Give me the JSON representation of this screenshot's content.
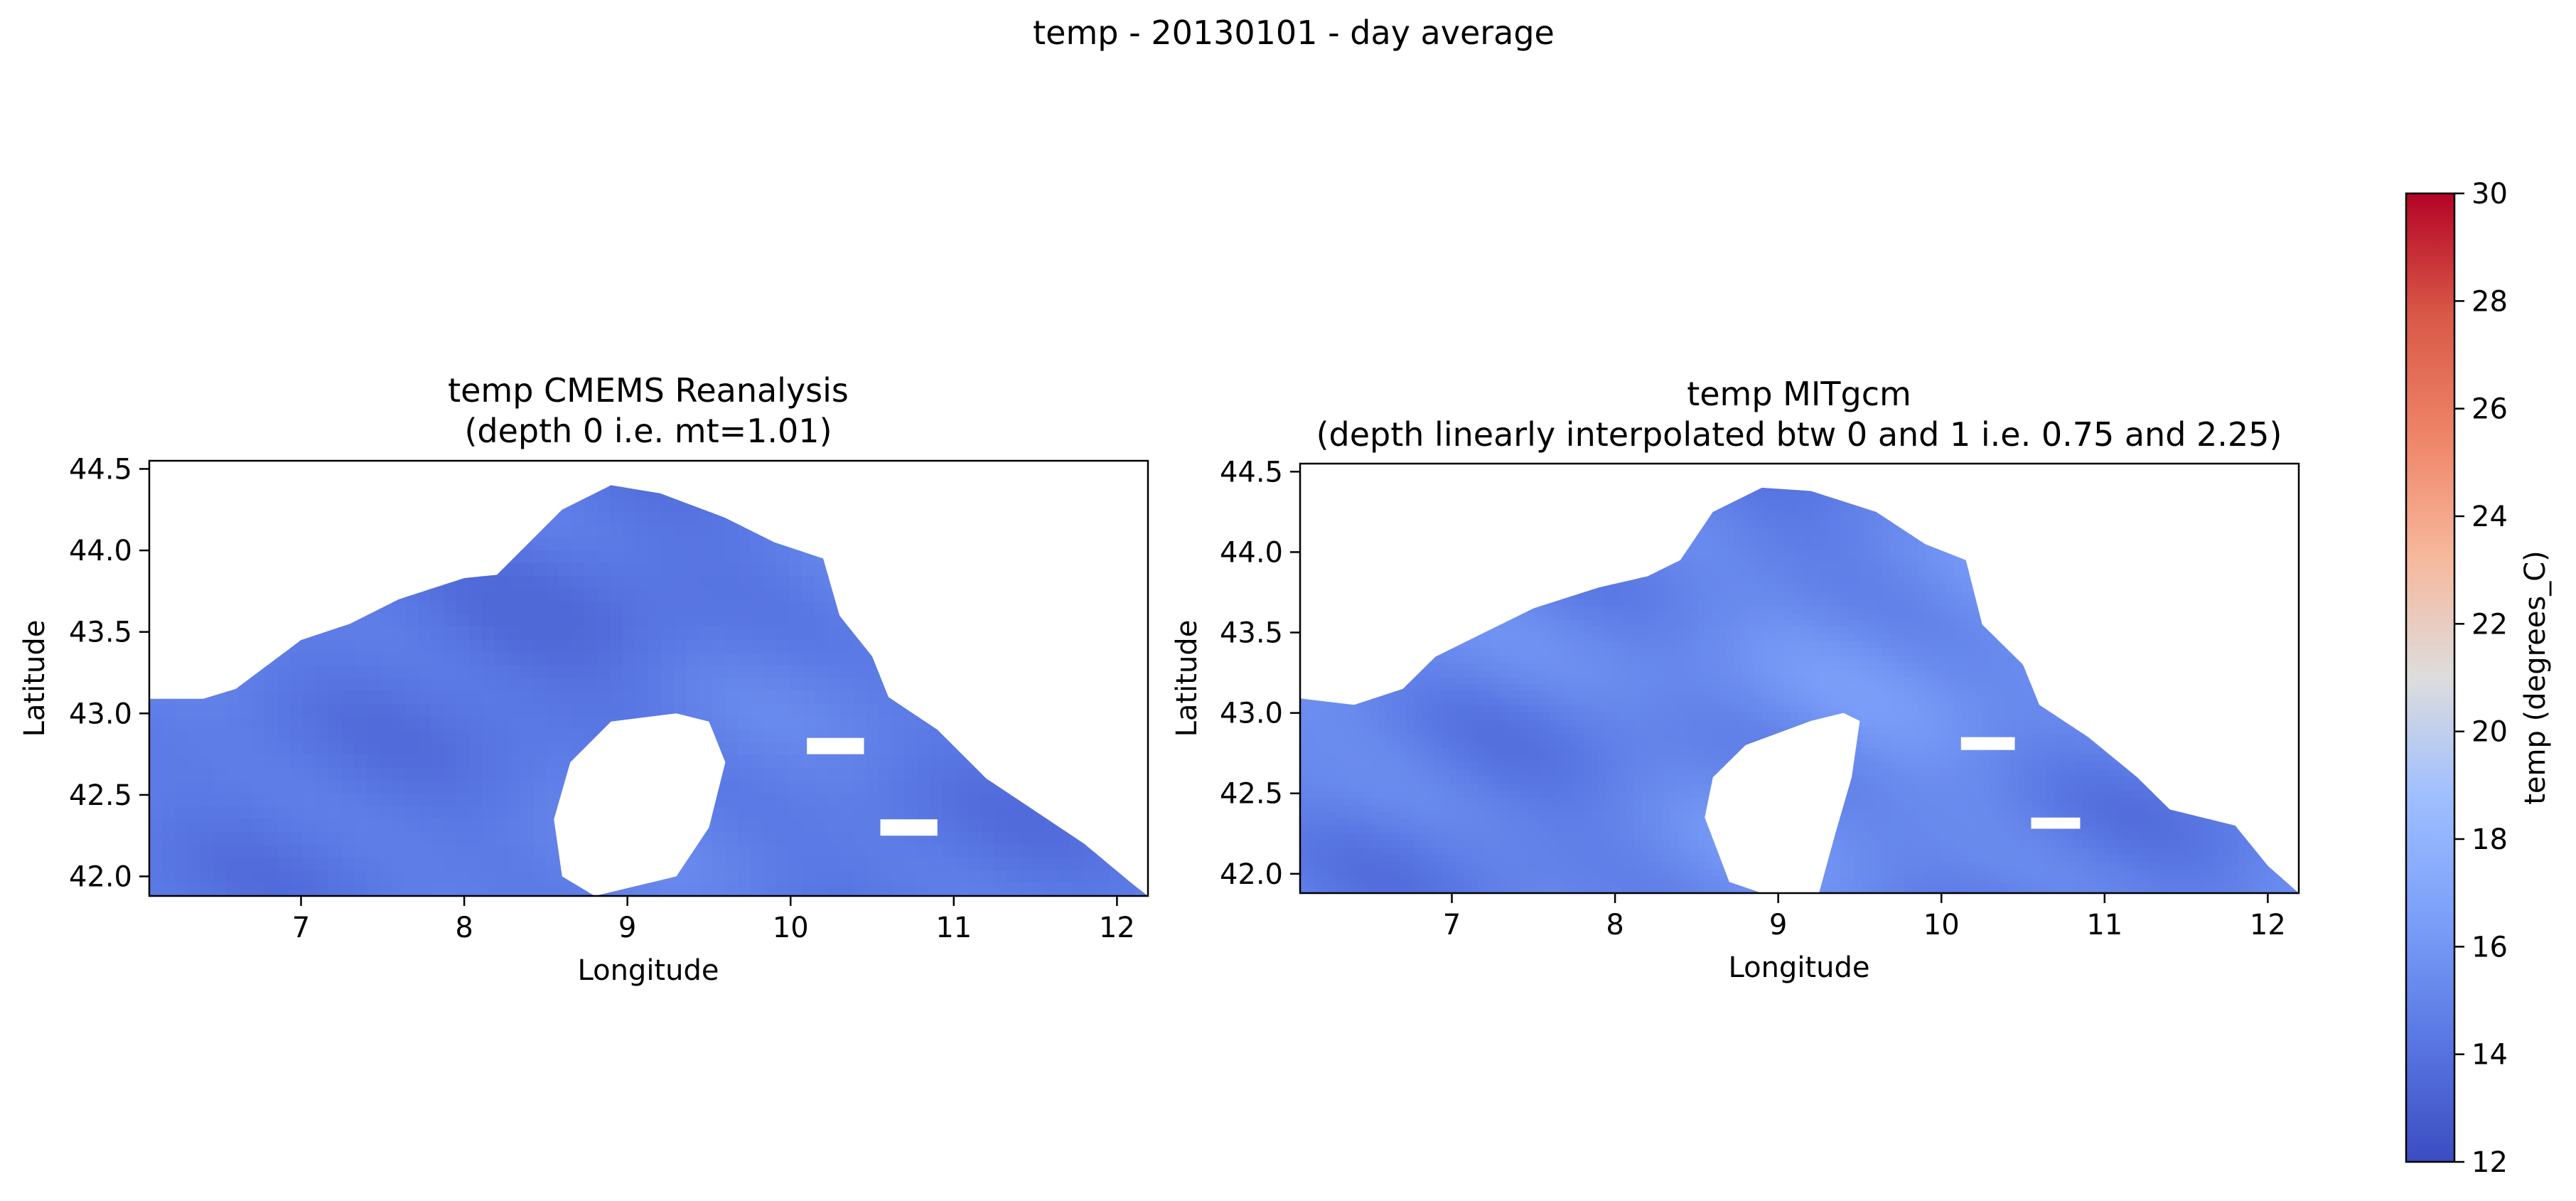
{
  "figure": {
    "suptitle": "temp - 20130101 - day average"
  },
  "colorbar": {
    "label": "temp (degrees_C)",
    "vmin": 12,
    "vmax": 30,
    "ticks": [
      12,
      14,
      16,
      18,
      20,
      22,
      24,
      26,
      28,
      30
    ],
    "colormap": "coolwarm",
    "colormap_low": "#3b4cc0",
    "colormap_mid": "#dddddd",
    "colormap_high": "#b40426"
  },
  "chart_data": [
    {
      "type": "heatmap",
      "title_line1": "temp CMEMS Reanalysis",
      "title_line2": "(depth 0 i.e. mt=1.01)",
      "xlabel": "Longitude",
      "ylabel": "Latitude",
      "xlim": [
        6.07,
        12.19
      ],
      "ylim": [
        41.88,
        44.55
      ],
      "xticks": [
        7,
        8,
        9,
        10,
        11,
        12
      ],
      "yticks": [
        42.0,
        42.5,
        43.0,
        43.5,
        44.0,
        44.5
      ],
      "ytick_labels": [
        "42.0",
        "42.5",
        "43.0",
        "43.5",
        "44.0",
        "44.5"
      ],
      "value_range": [
        13.5,
        15.5
      ],
      "typical_value": 14.3,
      "grid": false,
      "land_color": "#ffffff",
      "coast": [
        [
          6.07,
          43.09
        ],
        [
          6.4,
          43.09
        ],
        [
          6.6,
          43.15
        ],
        [
          6.8,
          43.3
        ],
        [
          7.0,
          43.45
        ],
        [
          7.3,
          43.55
        ],
        [
          7.6,
          43.7
        ],
        [
          8.0,
          43.83
        ],
        [
          8.2,
          43.85
        ],
        [
          8.45,
          44.1
        ],
        [
          8.6,
          44.25
        ],
        [
          8.9,
          44.4
        ],
        [
          9.2,
          44.35
        ],
        [
          9.6,
          44.2
        ],
        [
          9.9,
          44.05
        ],
        [
          10.2,
          43.95
        ],
        [
          10.3,
          43.6
        ],
        [
          10.5,
          43.35
        ],
        [
          10.6,
          43.1
        ],
        [
          10.9,
          42.9
        ],
        [
          11.2,
          42.6
        ],
        [
          11.5,
          42.4
        ],
        [
          11.8,
          42.2
        ],
        [
          12.1,
          41.95
        ],
        [
          12.19,
          41.88
        ],
        [
          6.07,
          41.88
        ]
      ],
      "islands": [
        {
          "name": "",
          "poly": [
            [
              8.55,
              42.35
            ],
            [
              8.65,
              42.7
            ],
            [
              8.9,
              42.95
            ],
            [
              9.3,
              43.0
            ],
            [
              9.5,
              42.95
            ],
            [
              9.6,
              42.7
            ],
            [
              9.5,
              42.3
            ],
            [
              9.3,
              42.0
            ],
            [
              8.8,
              41.88
            ],
            [
              8.6,
              42.0
            ]
          ]
        },
        {
          "name": "",
          "poly": [
            [
              10.1,
              42.85
            ],
            [
              10.45,
              42.85
            ],
            [
              10.45,
              42.75
            ],
            [
              10.1,
              42.75
            ]
          ]
        },
        {
          "name": "",
          "poly": [
            [
              10.55,
              42.35
            ],
            [
              10.9,
              42.35
            ],
            [
              10.9,
              42.25
            ],
            [
              10.55,
              42.25
            ]
          ]
        }
      ]
    },
    {
      "type": "heatmap",
      "title_line1": "temp MITgcm",
      "title_line2": "(depth linearly interpolated btw 0 and 1 i.e. 0.75 and 2.25)",
      "xlabel": "Longitude",
      "ylabel": "Latitude",
      "xlim": [
        6.07,
        12.19
      ],
      "ylim": [
        41.88,
        44.55
      ],
      "xticks": [
        7,
        8,
        9,
        10,
        11,
        12
      ],
      "yticks": [
        42.0,
        42.5,
        43.0,
        43.5,
        44.0,
        44.5
      ],
      "ytick_labels": [
        "42.0",
        "42.5",
        "43.0",
        "43.5",
        "44.0",
        "44.5"
      ],
      "value_range": [
        13.5,
        16.5
      ],
      "typical_value": 14.8,
      "grid": false,
      "land_color": "#ffffff",
      "coast": [
        [
          6.07,
          43.09
        ],
        [
          6.4,
          43.05
        ],
        [
          6.7,
          43.15
        ],
        [
          6.9,
          43.35
        ],
        [
          7.2,
          43.5
        ],
        [
          7.5,
          43.65
        ],
        [
          7.9,
          43.78
        ],
        [
          8.2,
          43.85
        ],
        [
          8.4,
          43.95
        ],
        [
          8.6,
          44.25
        ],
        [
          8.9,
          44.4
        ],
        [
          9.2,
          44.38
        ],
        [
          9.6,
          44.25
        ],
        [
          9.9,
          44.05
        ],
        [
          10.15,
          43.95
        ],
        [
          10.25,
          43.55
        ],
        [
          10.5,
          43.3
        ],
        [
          10.6,
          43.05
        ],
        [
          10.9,
          42.85
        ],
        [
          11.2,
          42.6
        ],
        [
          11.4,
          42.4
        ],
        [
          11.8,
          42.3
        ],
        [
          12.0,
          42.05
        ],
        [
          12.19,
          41.88
        ],
        [
          6.07,
          41.88
        ]
      ],
      "islands": [
        {
          "name": "",
          "poly": [
            [
              8.55,
              42.35
            ],
            [
              8.6,
              42.6
            ],
            [
              8.8,
              42.8
            ],
            [
              9.2,
              42.95
            ],
            [
              9.4,
              43.0
            ],
            [
              9.5,
              42.95
            ],
            [
              9.45,
              42.6
            ],
            [
              9.35,
              42.25
            ],
            [
              9.25,
              41.88
            ],
            [
              8.9,
              41.88
            ],
            [
              8.7,
              41.95
            ]
          ]
        },
        {
          "name": "",
          "poly": [
            [
              10.12,
              42.85
            ],
            [
              10.45,
              42.85
            ],
            [
              10.45,
              42.77
            ],
            [
              10.12,
              42.77
            ]
          ]
        },
        {
          "name": "",
          "poly": [
            [
              10.55,
              42.35
            ],
            [
              10.85,
              42.35
            ],
            [
              10.85,
              42.28
            ],
            [
              10.55,
              42.28
            ]
          ]
        }
      ]
    }
  ]
}
